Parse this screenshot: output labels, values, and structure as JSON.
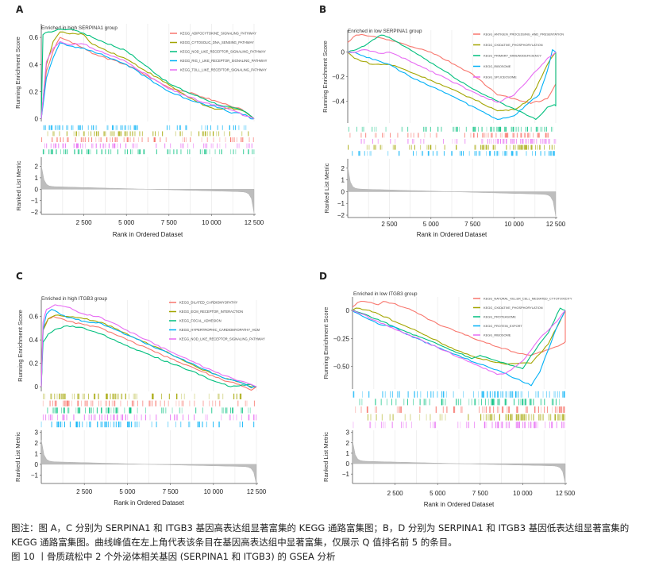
{
  "chart_data": [
    {
      "panel": "A",
      "type": "line",
      "title": "Enriched in high SERPINA1 group",
      "xlabel": "Rank in Ordered Dataset",
      "ylabel_top": "Running Enrichment Score",
      "ylabel_bottom": "Ranked List Metric",
      "xlim": [
        0,
        12500
      ],
      "xticks": [
        2500,
        5000,
        7500,
        10000,
        12500
      ],
      "xtick_labels": [
        "2 500",
        "5 000",
        "7 500",
        "10 000",
        "12 500"
      ],
      "ylim_top": [
        -0.02,
        0.7
      ],
      "yticks_top": [
        0,
        0.2,
        0.4,
        0.6
      ],
      "ytick_labels_top": [
        "0",
        "0.2",
        "0.4",
        "0.6"
      ],
      "ylim_bottom": [
        -2.2,
        2.8
      ],
      "yticks_bottom": [
        2,
        1,
        0,
        -1,
        -2
      ],
      "ytick_labels_bottom": [
        "2",
        "1",
        "0",
        "−1",
        "−2"
      ],
      "legend_position": "top-right",
      "series": [
        {
          "name": "KEGG_ADIPOCYTOKINE_SIGNALING_PATHWAY",
          "color": "#F8766D",
          "x": [
            0,
            300,
            700,
            1100,
            1500,
            2500,
            3000,
            5000,
            7500,
            8500,
            9500,
            10500,
            11000,
            11600,
            12500
          ],
          "y": [
            0,
            0.35,
            0.5,
            0.6,
            0.58,
            0.52,
            0.48,
            0.4,
            0.23,
            0.2,
            0.16,
            0.12,
            0.1,
            0.08,
            0.0
          ]
        },
        {
          "name": "KEGG_CYTOSOLIC_DNA_SENSING_PATHWAY",
          "color": "#A3A500",
          "x": [
            0,
            300,
            700,
            1100,
            1500,
            2500,
            3000,
            5000,
            7500,
            8500,
            9500,
            10200,
            11000,
            12000,
            12500
          ],
          "y": [
            0,
            0.4,
            0.57,
            0.64,
            0.63,
            0.62,
            0.55,
            0.44,
            0.25,
            0.17,
            0.1,
            0.07,
            0.08,
            0.05,
            0.0
          ]
        },
        {
          "name": "KEGG_NOD_LIKE_RECEPTOR_SIGNALING_PATHWAY",
          "color": "#00BF7D",
          "x": [
            0,
            100,
            400,
            1200,
            1800,
            2500,
            3000,
            5000,
            7500,
            8500,
            9500,
            10500,
            11300,
            12000,
            12500
          ],
          "y": [
            0,
            0.62,
            0.64,
            0.66,
            0.66,
            0.63,
            0.6,
            0.5,
            0.26,
            0.2,
            0.15,
            0.1,
            0.08,
            0.05,
            0.0
          ]
        },
        {
          "name": "KEGG_RIG_I_LIKE_RECEPTOR_SIGNALING_PATHWAY",
          "color": "#00B0F6",
          "x": [
            0,
            300,
            700,
            1100,
            1500,
            2500,
            3000,
            5000,
            7500,
            8500,
            9500,
            10500,
            11000,
            12000,
            12300,
            12500
          ],
          "y": [
            0,
            0.3,
            0.45,
            0.56,
            0.54,
            0.52,
            0.5,
            0.4,
            0.2,
            0.15,
            0.11,
            0.08,
            0.05,
            0.03,
            0.0,
            0.0
          ]
        },
        {
          "name": "KEGG_TOLL_LIKE_RECEPTOR_SIGNALING_PATHWAY",
          "color": "#E76BF3",
          "x": [
            0,
            300,
            700,
            1100,
            1500,
            2500,
            3000,
            5000,
            7500,
            8500,
            9500,
            10500,
            11300,
            12000,
            12500
          ],
          "y": [
            0,
            0.42,
            0.52,
            0.57,
            0.55,
            0.55,
            0.52,
            0.42,
            0.22,
            0.17,
            0.12,
            0.09,
            0.06,
            0.02,
            0.0
          ]
        }
      ],
      "hit_rows_order": [
        "KEGG_RIG_I_LIKE_RECEPTOR_SIGNALING_PATHWAY",
        "KEGG_CYTOSOLIC_DNA_SENSING_PATHWAY",
        "KEGG_ADIPOCYTOKINE_SIGNALING_PATHWAY",
        "KEGG_TOLL_LIKE_RECEPTOR_SIGNALING_PATHWAY",
        "KEGG_NOD_LIKE_RECEPTOR_SIGNALING_PATHWAY"
      ],
      "metric_profile": {
        "start": 2.0,
        "end": -2.0
      }
    },
    {
      "panel": "B",
      "type": "line",
      "title": "Enriched in low SERPINA1 group",
      "xlabel": "Rank in Ordered Dataset",
      "ylabel_top": "Running Enrichment Score",
      "ylabel_bottom": "Ranked List Metric",
      "xlim": [
        0,
        12500
      ],
      "xticks": [
        2500,
        5000,
        7500,
        10000,
        12500
      ],
      "xtick_labels": [
        "2 500",
        "5 000",
        "7 500",
        "10 000",
        "12 500"
      ],
      "ylim_top": [
        -0.58,
        0.18
      ],
      "yticks_top": [
        0,
        -0.2,
        -0.4
      ],
      "ytick_labels_top": [
        "0",
        "−0.2",
        "−0.4"
      ],
      "ylim_bottom": [
        -2.2,
        2.8
      ],
      "yticks_bottom": [
        2,
        1,
        0,
        -1,
        -2
      ],
      "ytick_labels_bottom": [
        "2",
        "1",
        "0",
        "−1",
        "−2"
      ],
      "legend_position": "top-right",
      "series": [
        {
          "name": "KEGG_ANTIGEN_PROCESSING_AND_PRESENTATION",
          "color": "#F8766D",
          "x": [
            0,
            500,
            1000,
            2500,
            3000,
            5000,
            7500,
            9000,
            10000,
            11000,
            12000,
            12500,
            12500
          ],
          "y": [
            0.08,
            0.14,
            0.14,
            0.1,
            0.08,
            0.0,
            -0.18,
            -0.35,
            -0.38,
            -0.42,
            -0.38,
            -0.26,
            0.0
          ]
        },
        {
          "name": "KEGG_OXIDATIVE_PHOSPHORYLATION",
          "color": "#A3A500",
          "x": [
            0,
            400,
            1500,
            2500,
            3000,
            5000,
            7500,
            9000,
            10000,
            11000,
            12000,
            12500
          ],
          "y": [
            0,
            -0.05,
            -0.1,
            -0.1,
            -0.12,
            -0.23,
            -0.38,
            -0.48,
            -0.47,
            -0.38,
            -0.1,
            0.0
          ]
        },
        {
          "name": "KEGG_PRIMARY_IMMUNODEFICIENCY",
          "color": "#00BF7D",
          "x": [
            0,
            500,
            1000,
            1500,
            2000,
            2500,
            4000,
            7500,
            9000,
            11300,
            12000,
            12400,
            12500,
            12500
          ],
          "y": [
            0,
            0.02,
            0.05,
            0.1,
            0.14,
            0.12,
            0.0,
            -0.3,
            -0.4,
            -0.55,
            -0.45,
            -0.43,
            -0.44,
            0.0
          ]
        },
        {
          "name": "KEGG_RIBOSOME",
          "color": "#00B0F6",
          "x": [
            0,
            400,
            1500,
            2500,
            4000,
            6000,
            8000,
            9000,
            10000,
            11000,
            11500,
            12000,
            12300,
            12500
          ],
          "y": [
            0,
            0.0,
            -0.06,
            -0.1,
            -0.22,
            -0.34,
            -0.48,
            -0.55,
            -0.52,
            -0.4,
            -0.35,
            -0.15,
            0.02,
            0.0
          ]
        },
        {
          "name": "KEGG_SPLICEOSOME",
          "color": "#E76BF3",
          "x": [
            0,
            500,
            1000,
            2000,
            2500,
            4000,
            6000,
            8000,
            9000,
            10000,
            11000,
            12000,
            12500
          ],
          "y": [
            0,
            0.0,
            0.02,
            -0.01,
            0.0,
            -0.09,
            -0.22,
            -0.36,
            -0.41,
            -0.35,
            -0.2,
            -0.05,
            0.0
          ]
        }
      ],
      "hit_rows_order": [
        "KEGG_PRIMARY_IMMUNODEFICIENCY",
        "KEGG_ANTIGEN_PROCESSING_AND_PRESENTATION",
        "KEGG_SPLICEOSOME",
        "KEGG_OXIDATIVE_PHOSPHORYLATION",
        "KEGG_RIBOSOME"
      ],
      "metric_profile": {
        "start": 2.0,
        "end": -2.0
      }
    },
    {
      "panel": "C",
      "type": "line",
      "title": "Enriched in high ITGB3 group",
      "xlabel": "Rank in Ordered Dataset",
      "ylabel_top": "Running Enrichment Score",
      "ylabel_bottom": "Ranked List Metric",
      "xlim": [
        0,
        12500
      ],
      "xticks": [
        2500,
        5000,
        7500,
        10000,
        12500
      ],
      "xtick_labels": [
        "2 500",
        "5 000",
        "7 500",
        "10 000",
        "12 500"
      ],
      "ylim_top": [
        -0.04,
        0.74
      ],
      "yticks_top": [
        0,
        0.2,
        0.4,
        0.6
      ],
      "ytick_labels_top": [
        "0",
        "0.2",
        "0.4",
        "0.6"
      ],
      "ylim_bottom": [
        -1.8,
        3.2
      ],
      "yticks_bottom": [
        3,
        2,
        1,
        0,
        -1
      ],
      "ytick_labels_bottom": [
        "3",
        "2",
        "1",
        "0",
        "−1"
      ],
      "legend_position": "top-right",
      "series": [
        {
          "name": "KEGG_DILATED_CARDIOMYOPATHY",
          "color": "#F8766D",
          "x": [
            0,
            100,
            400,
            700,
            1500,
            2500,
            3500,
            5000,
            7500,
            9000,
            10500,
            11500,
            12200,
            12500
          ],
          "y": [
            0,
            0.5,
            0.58,
            0.6,
            0.56,
            0.53,
            0.5,
            0.4,
            0.24,
            0.15,
            0.06,
            0.02,
            -0.03,
            0.0
          ]
        },
        {
          "name": "KEGG_ECM_RECEPTOR_INTERACTION",
          "color": "#A3A500",
          "x": [
            0,
            100,
            400,
            800,
            1500,
            2500,
            3500,
            5000,
            7500,
            9000,
            10500,
            11500,
            12200,
            12500
          ],
          "y": [
            0,
            0.48,
            0.58,
            0.61,
            0.6,
            0.58,
            0.55,
            0.45,
            0.28,
            0.17,
            0.08,
            0.04,
            0.0,
            0.0
          ]
        },
        {
          "name": "KEGG_FOCAL_ADHESION",
          "color": "#00BF7D",
          "x": [
            0,
            100,
            400,
            800,
            1500,
            2500,
            3500,
            5000,
            7500,
            9000,
            10000,
            11000,
            12000,
            12500
          ],
          "y": [
            0,
            0.38,
            0.45,
            0.49,
            0.52,
            0.5,
            0.45,
            0.35,
            0.2,
            0.12,
            0.05,
            0.0,
            0.02,
            0.0
          ]
        },
        {
          "name": "KEGG_HYPERTROPHIC_CARDIOMYOPATHY_HCM",
          "color": "#00B0F6",
          "x": [
            0,
            100,
            300,
            600,
            1500,
            2500,
            3500,
            5000,
            7500,
            9000,
            10500,
            11500,
            12200,
            12500
          ],
          "y": [
            0,
            0.48,
            0.62,
            0.66,
            0.59,
            0.56,
            0.54,
            0.44,
            0.28,
            0.18,
            0.08,
            0.04,
            -0.01,
            0.0
          ]
        },
        {
          "name": "KEGG_NOD_LIKE_RECEPTOR_SIGNALING_PATHWAY",
          "color": "#E76BF3",
          "x": [
            0,
            100,
            300,
            800,
            1500,
            2500,
            3500,
            5000,
            7500,
            9000,
            10500,
            11500,
            12200,
            12500
          ],
          "y": [
            0,
            0.55,
            0.66,
            0.7,
            0.68,
            0.62,
            0.59,
            0.48,
            0.3,
            0.2,
            0.1,
            0.05,
            0.02,
            0.0
          ]
        }
      ],
      "hit_rows_order": [
        "KEGG_ECM_RECEPTOR_INTERACTION",
        "KEGG_DILATED_CARDIOMYOPATHY",
        "KEGG_FOCAL_ADHESION",
        "KEGG_NOD_LIKE_RECEPTOR_SIGNALING_PATHWAY",
        "KEGG_HYPERTROPHIC_CARDIOMYOPATHY_HCM"
      ],
      "metric_profile": {
        "start": 2.2,
        "end": -1.8
      }
    },
    {
      "panel": "D",
      "type": "line",
      "title": "Enriched in low ITGB3 group",
      "xlabel": "Rank in Ordered Dataset",
      "ylabel_top": "Running Enrichment Score",
      "ylabel_bottom": "Ranked List Metric",
      "xlim": [
        0,
        12500
      ],
      "xticks": [
        2500,
        5000,
        7500,
        10000,
        12500
      ],
      "xtick_labels": [
        "2 500",
        "5 000",
        "7 500",
        "10 000",
        "12 500"
      ],
      "ylim_top": [
        -0.7,
        0.12
      ],
      "yticks_top": [
        0,
        -0.25,
        -0.5
      ],
      "ytick_labels_top": [
        "0",
        "−0.25",
        "−0.50"
      ],
      "ylim_bottom": [
        -1.9,
        3.2
      ],
      "yticks_bottom": [
        3,
        2,
        1,
        0,
        -1
      ],
      "ytick_labels_bottom": [
        "3",
        "2",
        "1",
        "0",
        "−1"
      ],
      "legend_position": "top-right",
      "series": [
        {
          "name": "KEGG_NATURAL_KILLER_CELL_MEDIATED_CYTOTOXICITY",
          "color": "#F8766D",
          "x": [
            0,
            300,
            700,
            1500,
            1800,
            2500,
            3500,
            5000,
            7500,
            9500,
            10500,
            11500,
            12300,
            12500,
            12500
          ],
          "y": [
            0.03,
            0.07,
            0.08,
            0.05,
            0.08,
            0.06,
            0.0,
            -0.12,
            -0.27,
            -0.37,
            -0.4,
            -0.35,
            -0.3,
            -0.28,
            0.0
          ]
        },
        {
          "name": "KEGG_OXIDATIVE_PHOSPHORYLATION",
          "color": "#A3A500",
          "x": [
            0,
            200,
            1000,
            1500,
            2500,
            4000,
            6000,
            7500,
            9000,
            10500,
            11500,
            12500
          ],
          "y": [
            0,
            0.02,
            0.0,
            -0.03,
            -0.1,
            -0.2,
            -0.35,
            -0.43,
            -0.48,
            -0.47,
            -0.3,
            0.0
          ]
        },
        {
          "name": "KEGG_PROTEASOME",
          "color": "#00BF7D",
          "x": [
            0,
            200,
            1500,
            2500,
            3000,
            5000,
            7000,
            7500,
            8500,
            10000,
            10500,
            11500,
            12200,
            12500
          ],
          "y": [
            0,
            -0.01,
            -0.08,
            -0.15,
            -0.18,
            -0.3,
            -0.43,
            -0.4,
            -0.45,
            -0.52,
            -0.4,
            -0.2,
            0.02,
            0.0
          ]
        },
        {
          "name": "KEGG_PROTEIN_EXPORT",
          "color": "#00B0F6",
          "x": [
            0,
            200,
            1500,
            2500,
            3000,
            5000,
            7500,
            8500,
            10500,
            11000,
            11500,
            12000,
            12500
          ],
          "y": [
            0,
            -0.02,
            -0.12,
            -0.15,
            -0.2,
            -0.33,
            -0.48,
            -0.53,
            -0.67,
            -0.55,
            -0.35,
            -0.15,
            0.0
          ]
        },
        {
          "name": "KEGG_RIBOSOME",
          "color": "#E76BF3",
          "x": [
            0,
            500,
            1500,
            2500,
            3500,
            5000,
            7500,
            8500,
            9000,
            10000,
            11000,
            12000,
            12500
          ],
          "y": [
            0,
            -0.03,
            -0.1,
            -0.17,
            -0.23,
            -0.33,
            -0.5,
            -0.57,
            -0.56,
            -0.45,
            -0.25,
            -0.1,
            0.0
          ]
        }
      ],
      "hit_rows_order": [
        "KEGG_PROTEIN_EXPORT",
        "KEGG_PROTEASOME",
        "KEGG_NATURAL_KILLER_CELL_MEDIATED_CYTOTOXICITY",
        "KEGG_OXIDATIVE_PHOSPHORYLATION",
        "KEGG_RIBOSOME"
      ],
      "metric_profile": {
        "start": 2.1,
        "end": -1.8
      }
    }
  ],
  "panels": {
    "A": {
      "label": "A"
    },
    "B": {
      "label": "B"
    },
    "C": {
      "label": "C"
    },
    "D": {
      "label": "D"
    }
  },
  "caption": {
    "note_line1": "图注：图 A，C 分别为 SERPINA1 和 ITGB3 基因高表达组显著富集的 KEGG 通路富集图；B，D 分别为 SERPINA1 和 ITGB3 基因低表达组显著富集的",
    "note_line2": "KEGG 通路富集图。曲线峰值在左上角代表该条目在基因高表达组中显著富集，仅展示 Q 值排名前 5 的条目。",
    "figure_title": "图 10 丨骨质疏松中 2 个外泌体相关基因 (SERPINA1 和 ITGB3) 的 GSEA 分析"
  }
}
